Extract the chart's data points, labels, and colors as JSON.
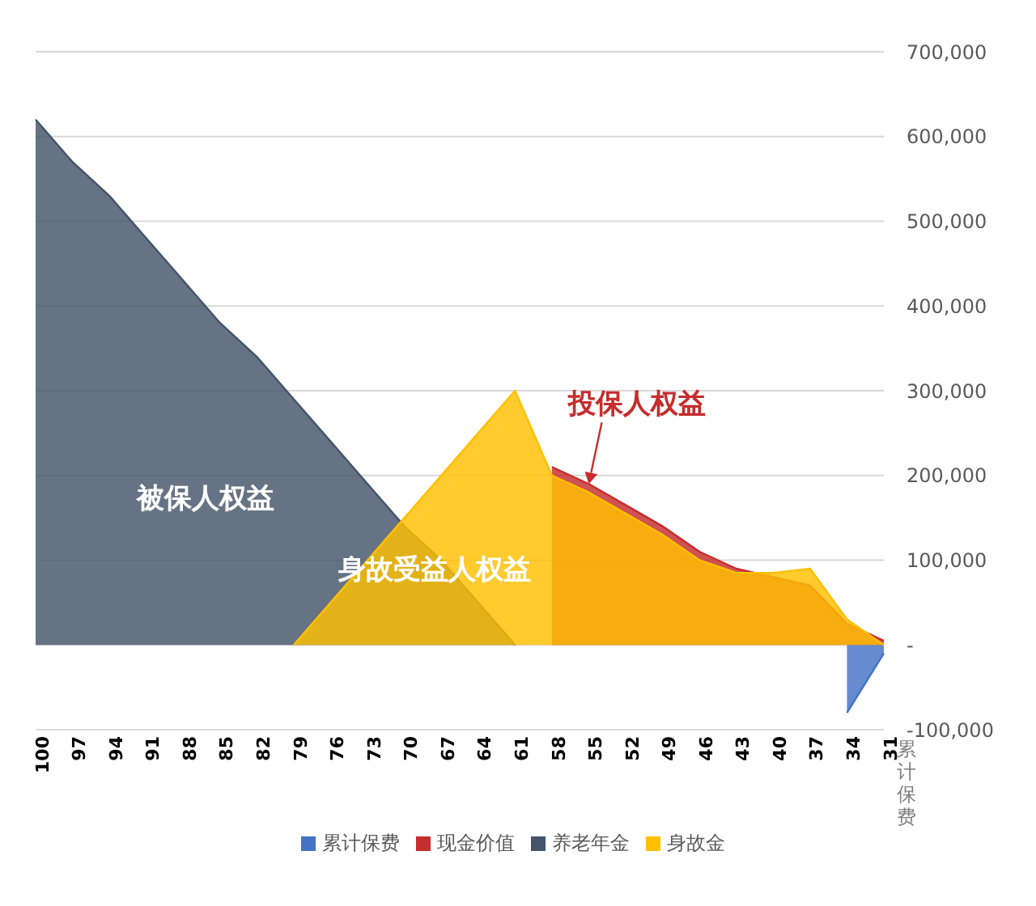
{
  "chart_data": {
    "type": "area",
    "categories": [
      "100",
      "97",
      "94",
      "91",
      "88",
      "85",
      "82",
      "79",
      "76",
      "73",
      "70",
      "67",
      "64",
      "61",
      "58",
      "55",
      "52",
      "49",
      "46",
      "43",
      "40",
      "37",
      "34",
      "31"
    ],
    "series": [
      {
        "name": "累计保费",
        "color": "#4472c4",
        "values": [
          null,
          null,
          null,
          null,
          null,
          null,
          null,
          null,
          null,
          null,
          null,
          null,
          null,
          null,
          null,
          null,
          null,
          null,
          null,
          null,
          null,
          null,
          -80000,
          -10000
        ]
      },
      {
        "name": "现金价值",
        "color": "#c62d2d",
        "values": [
          null,
          null,
          null,
          null,
          null,
          null,
          null,
          null,
          null,
          null,
          null,
          null,
          null,
          null,
          210000,
          190000,
          165000,
          140000,
          110000,
          90000,
          80000,
          70000,
          25000,
          5000
        ]
      },
      {
        "name": "养老年金",
        "color": "#44546a",
        "values": [
          620000,
          570000,
          530000,
          480000,
          430000,
          380000,
          340000,
          290000,
          240000,
          190000,
          140000,
          100000,
          50000,
          0,
          null,
          null,
          null,
          null,
          null,
          null,
          null,
          null,
          null,
          null
        ]
      },
      {
        "name": "身故金",
        "color": "#ffc000",
        "values": [
          null,
          null,
          null,
          null,
          null,
          null,
          null,
          0,
          50000,
          100000,
          150000,
          200000,
          250000,
          300000,
          200000,
          180000,
          155000,
          130000,
          100000,
          85000,
          85000,
          90000,
          30000,
          0
        ]
      }
    ],
    "ylim": [
      -100000,
      700000
    ],
    "yticks": [
      {
        "value": -100000,
        "label": "-100,000"
      },
      {
        "value": 0,
        "label": "-"
      },
      {
        "value": 100000,
        "label": "100,000"
      },
      {
        "value": 200000,
        "label": "200,000"
      },
      {
        "value": 300000,
        "label": "300,000"
      },
      {
        "value": 400000,
        "label": "400,000"
      },
      {
        "value": 500000,
        "label": "500,000"
      },
      {
        "value": 600000,
        "label": "600,000"
      },
      {
        "value": 700000,
        "label": "700,000"
      }
    ],
    "grid": "y",
    "legend": "bottom",
    "annotations": [
      "被保人权益",
      "身故受益人权益",
      {
        "text": "投保人权益",
        "x": "55",
        "y": 190000
      },
      "累计保费"
    ]
  }
}
